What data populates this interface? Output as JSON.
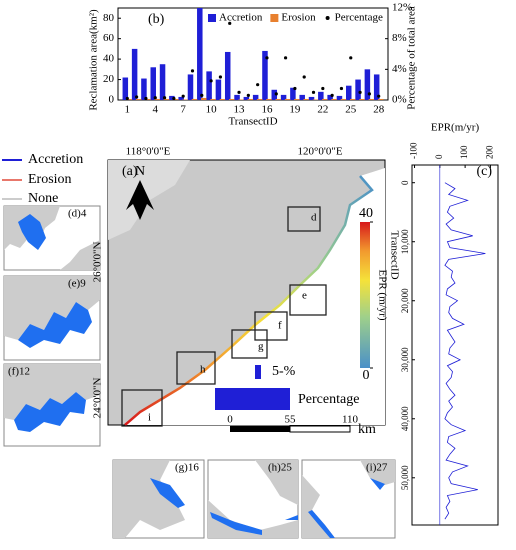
{
  "chart_data": [
    {
      "type": "bar",
      "panel": "(b)",
      "xlabel": "TransectID",
      "ylabel": "Reclamation area(km²)",
      "y2label": "Percentage of total area",
      "x": [
        1,
        2,
        3,
        4,
        5,
        6,
        7,
        8,
        9,
        10,
        11,
        12,
        13,
        14,
        15,
        16,
        17,
        18,
        19,
        20,
        21,
        22,
        23,
        24,
        25,
        26,
        27,
        28
      ],
      "xlim": [
        0,
        29
      ],
      "xticks": [
        1,
        4,
        7,
        10,
        13,
        16,
        19,
        22,
        25,
        28
      ],
      "ylim": [
        0,
        90
      ],
      "yticks": [
        0,
        20,
        40,
        60,
        80
      ],
      "y2lim": [
        0,
        12
      ],
      "y2ticks": [
        {
          "value": 0,
          "label": "0%"
        },
        {
          "value": 4,
          "label": "4%"
        },
        {
          "value": 8,
          "label": "8%"
        },
        {
          "value": 12,
          "label": "12%"
        }
      ],
      "series": [
        {
          "name": "Accretion",
          "color": "#1f1fd6",
          "values": [
            22,
            50,
            21,
            32,
            35,
            4,
            3,
            25,
            90,
            28,
            20,
            47,
            5,
            3,
            5,
            48,
            10,
            5,
            12,
            5,
            3,
            8,
            5,
            4,
            14,
            20,
            30,
            25
          ]
        },
        {
          "name": "Erosion",
          "color": "#e8802e",
          "values": [
            1,
            1,
            1,
            1,
            1,
            1,
            0.5,
            1,
            2,
            1,
            1,
            1,
            0.5,
            1,
            1,
            1,
            1,
            1,
            1,
            1,
            0.5,
            1,
            1,
            1,
            1,
            1,
            1,
            1
          ]
        },
        {
          "name": "Percentage",
          "color": "#000000",
          "axis": "y2",
          "values": [
            0.2,
            0.4,
            0.2,
            0.3,
            0.3,
            0.2,
            0.5,
            3.8,
            0.6,
            2.5,
            3,
            10,
            1,
            0.6,
            2,
            5.5,
            0.8,
            5.5,
            1.5,
            3,
            1,
            1.5,
            0.6,
            1.5,
            5.5,
            1,
            0.8,
            0.5
          ]
        }
      ]
    },
    {
      "type": "line",
      "panel": "(c)",
      "orientation": "vertical",
      "xlabel": "EPR(m/yr)",
      "color": "#1f1fd6",
      "x": [
        0,
        1000,
        2000,
        3000,
        4000,
        5000,
        6000,
        7000,
        8000,
        9000,
        10000,
        11000,
        12000,
        13000,
        14000,
        15000,
        16000,
        17000,
        18000,
        19000,
        20000,
        21000,
        22000,
        23000,
        24000,
        25000,
        26000,
        27000,
        28000,
        29000,
        30000,
        31000,
        32000,
        33000,
        34000,
        35000,
        36000,
        37000,
        38000,
        39000,
        40000,
        41000,
        42000,
        43000,
        44000,
        45000,
        46000,
        47000,
        48000,
        49000,
        50000,
        51000,
        52000,
        53000,
        54000,
        55000,
        56000,
        57000
      ],
      "values": [
        20,
        60,
        35,
        110,
        40,
        30,
        55,
        25,
        45,
        130,
        30,
        40,
        180,
        35,
        20,
        50,
        45,
        60,
        30,
        25,
        70,
        40,
        35,
        50,
        95,
        30,
        45,
        60,
        40,
        35,
        80,
        30,
        50,
        45,
        25,
        40,
        60,
        35,
        50,
        30,
        20,
        45,
        100,
        35,
        30,
        60,
        40,
        25,
        110,
        50,
        35,
        45,
        150,
        30,
        40,
        25,
        35,
        20
      ],
      "xlim": [
        -3000,
        58000
      ],
      "xticks": [
        0,
        {
          "value": 10000,
          "label": "10,000"
        },
        {
          "value": 20000,
          "label": "20,000"
        },
        {
          "value": 30000,
          "label": "30,000"
        },
        {
          "value": 40000,
          "label": "40,000"
        },
        {
          "value": 50000,
          "label": "50,000"
        }
      ],
      "ylim": [
        -110,
        230
      ],
      "yticks": [
        -100,
        0,
        100,
        200
      ]
    }
  ],
  "legend": {
    "accretion": "Accretion",
    "erosion": "Erosion",
    "none": "None"
  },
  "map": {
    "panel": "(a)",
    "lon": [
      "118°0'0\"E",
      "120°0'0\"E"
    ],
    "lat": [
      "26°0'0\"N",
      "24°0'0\"N"
    ],
    "north": "N",
    "colorbar": {
      "label": "EPR (m/yr)",
      "label2": "TransectID",
      "ticks": [
        0,
        40
      ]
    },
    "boxes": [
      "d",
      "e",
      "f",
      "g",
      "h",
      "i"
    ],
    "percentage_small": "5-%",
    "percentage": "Percentage",
    "scale": [
      0,
      55,
      110
    ],
    "scale_unit": "km"
  },
  "insets": [
    "(d)4",
    "(e)9",
    "(f)12",
    "(g)16",
    "(h)25",
    "(i)27"
  ]
}
